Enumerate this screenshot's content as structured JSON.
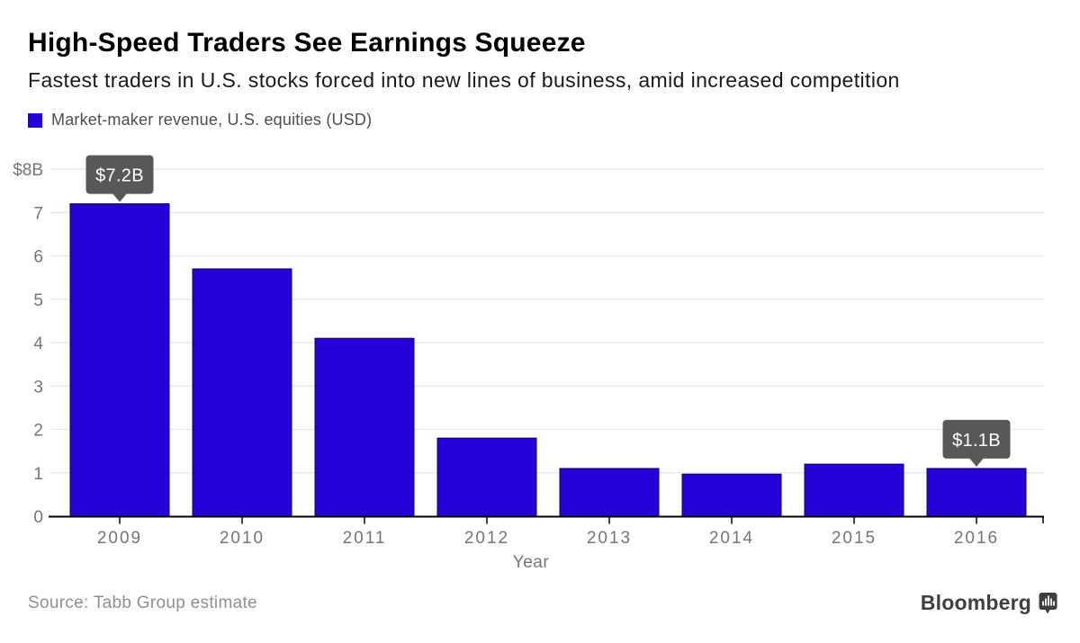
{
  "header": {
    "title": "High-Speed Traders See Earnings Squeeze",
    "subtitle": "Fastest traders in U.S. stocks forced into new lines of business, amid increased competition"
  },
  "legend": {
    "label": "Market-maker revenue, U.S. equities (USD)",
    "swatch_color": "#2602d9"
  },
  "chart_data": {
    "type": "bar",
    "title": "Market-maker revenue, U.S. equities (USD)",
    "categories": [
      "2009",
      "2010",
      "2011",
      "2012",
      "2013",
      "2014",
      "2015",
      "2016"
    ],
    "values": [
      7.2,
      5.7,
      4.1,
      1.8,
      1.1,
      0.97,
      1.2,
      1.1
    ],
    "xlabel": "Year",
    "ylabel": "",
    "ylim": [
      0,
      8
    ],
    "ytick_values": [
      0,
      1,
      2,
      3,
      4,
      5,
      6,
      7,
      8
    ],
    "ytick_labels": [
      "0",
      "1",
      "2",
      "3",
      "4",
      "5",
      "6",
      "7",
      "$8B"
    ],
    "grid": true,
    "legend_position": "top-left",
    "bar_color": "#2602d9",
    "bar_edge_color": "#1a0147",
    "grid_color": "#e7e7e7",
    "axis_color": "#000000",
    "tick_label_color": "#757575",
    "annotations": [
      {
        "category": "2009",
        "label": "$7.2B"
      },
      {
        "category": "2016",
        "label": "$1.1B"
      }
    ],
    "annotation_bg": "#58585a",
    "annotation_text_color": "#ffffff"
  },
  "footer": {
    "source": "Source: Tabb Group estimate",
    "brand": "Bloomberg"
  }
}
